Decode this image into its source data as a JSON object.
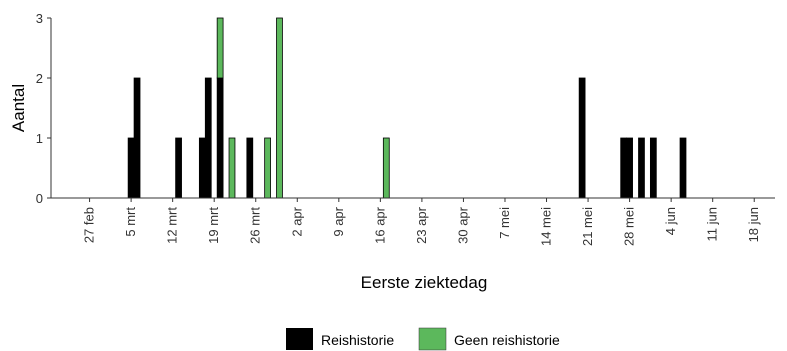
{
  "chart_data": {
    "type": "bar",
    "stacked": true,
    "xlabel": "Eerste ziektedag",
    "ylabel": "Aantal",
    "ylim": [
      0,
      3
    ],
    "y_ticks": [
      0,
      1,
      2,
      3
    ],
    "x_tick_labels": [
      "27 feb",
      "5 mrt",
      "12 mrt",
      "19 mrt",
      "26 mrt",
      "2 apr",
      "9 apr",
      "16 apr",
      "23 apr",
      "30 apr",
      "7 mei",
      "14 mei",
      "21 mei",
      "28 mei",
      "4 jun",
      "11 jun",
      "18 jun"
    ],
    "x_tick_dates": [
      "2020-02-27",
      "2020-03-05",
      "2020-03-12",
      "2020-03-19",
      "2020-03-26",
      "2020-04-02",
      "2020-04-09",
      "2020-04-16",
      "2020-04-23",
      "2020-04-30",
      "2020-05-07",
      "2020-05-14",
      "2020-05-21",
      "2020-05-28",
      "2020-06-04",
      "2020-06-11",
      "2020-06-18"
    ],
    "x_range": [
      "2020-02-21",
      "2020-06-22"
    ],
    "grid": false,
    "legend_position": "bottom",
    "series": [
      {
        "name": "Reishistorie",
        "color": "#000000",
        "points": [
          {
            "date": "2020-03-05",
            "value": 1
          },
          {
            "date": "2020-03-06",
            "value": 2
          },
          {
            "date": "2020-03-13",
            "value": 1
          },
          {
            "date": "2020-03-17",
            "value": 1
          },
          {
            "date": "2020-03-18",
            "value": 2
          },
          {
            "date": "2020-03-20",
            "value": 2
          },
          {
            "date": "2020-03-25",
            "value": 1
          },
          {
            "date": "2020-05-20",
            "value": 2
          },
          {
            "date": "2020-05-27",
            "value": 1
          },
          {
            "date": "2020-05-28",
            "value": 1
          },
          {
            "date": "2020-05-30",
            "value": 1
          },
          {
            "date": "2020-06-01",
            "value": 1
          },
          {
            "date": "2020-06-06",
            "value": 1
          }
        ]
      },
      {
        "name": "Geen reishistorie",
        "color": "#5cb85c",
        "points": [
          {
            "date": "2020-03-20",
            "value": 1
          },
          {
            "date": "2020-03-22",
            "value": 1
          },
          {
            "date": "2020-03-28",
            "value": 1
          },
          {
            "date": "2020-03-30",
            "value": 3
          },
          {
            "date": "2020-04-17",
            "value": 1
          }
        ]
      }
    ]
  }
}
